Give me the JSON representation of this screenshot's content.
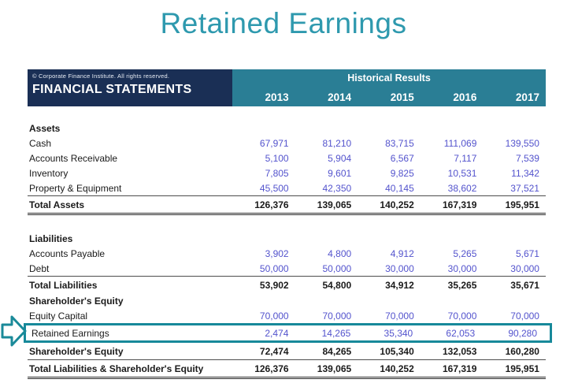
{
  "title": "Retained Earnings",
  "colors": {
    "title_teal": "#2e99ae",
    "header_navy": "#1a2f55",
    "header_teal": "#2a7e95",
    "value_blue": "#5353cd",
    "highlight_teal": "#17899a",
    "text_black": "#1a1a1a"
  },
  "table": {
    "copyright": "© Corporate Finance Institute. All rights reserved.",
    "left_header": "FINANCIAL STATEMENTS",
    "group_header": "Historical Results",
    "years": [
      "2013",
      "2014",
      "2015",
      "2016",
      "2017"
    ],
    "rows": [
      {
        "type": "section",
        "label": "Assets"
      },
      {
        "type": "data",
        "label": "Cash",
        "values": [
          "67,971",
          "81,210",
          "83,715",
          "111,069",
          "139,550"
        ]
      },
      {
        "type": "data",
        "label": "Accounts Receivable",
        "values": [
          "5,100",
          "5,904",
          "6,567",
          "7,117",
          "7,539"
        ]
      },
      {
        "type": "data",
        "label": "Inventory",
        "values": [
          "7,805",
          "9,601",
          "9,825",
          "10,531",
          "11,342"
        ]
      },
      {
        "type": "data",
        "label": "Property & Equipment",
        "values": [
          "45,500",
          "42,350",
          "40,145",
          "38,602",
          "37,521"
        ],
        "border": "thin"
      },
      {
        "type": "total",
        "label": "Total Assets",
        "values": [
          "126,376",
          "139,065",
          "140,252",
          "167,319",
          "195,951"
        ],
        "border": "thick"
      },
      {
        "type": "spacer"
      },
      {
        "type": "section",
        "label": "Liabilities"
      },
      {
        "type": "data",
        "label": "Accounts Payable",
        "values": [
          "3,902",
          "4,800",
          "4,912",
          "5,265",
          "5,671"
        ]
      },
      {
        "type": "data",
        "label": "Debt",
        "values": [
          "50,000",
          "50,000",
          "30,000",
          "30,000",
          "30,000"
        ],
        "border": "thin"
      },
      {
        "type": "total",
        "label": "Total Liabilities",
        "values": [
          "53,902",
          "54,800",
          "34,912",
          "35,265",
          "35,671"
        ]
      },
      {
        "type": "section",
        "label": "Shareholder's Equity"
      },
      {
        "type": "data",
        "label": "Equity Capital",
        "values": [
          "70,000",
          "70,000",
          "70,000",
          "70,000",
          "70,000"
        ]
      },
      {
        "type": "data",
        "label": "Retained Earnings",
        "values": [
          "2,474",
          "14,265",
          "35,340",
          "62,053",
          "90,280"
        ],
        "highlight": true
      },
      {
        "type": "total",
        "label": "Shareholder's Equity",
        "values": [
          "72,474",
          "84,265",
          "105,340",
          "132,053",
          "160,280"
        ],
        "border": "thin"
      },
      {
        "type": "total",
        "label": "Total Liabilities & Shareholder's Equity",
        "values": [
          "126,376",
          "139,065",
          "140,252",
          "167,319",
          "195,951"
        ],
        "border": "thick"
      }
    ]
  }
}
